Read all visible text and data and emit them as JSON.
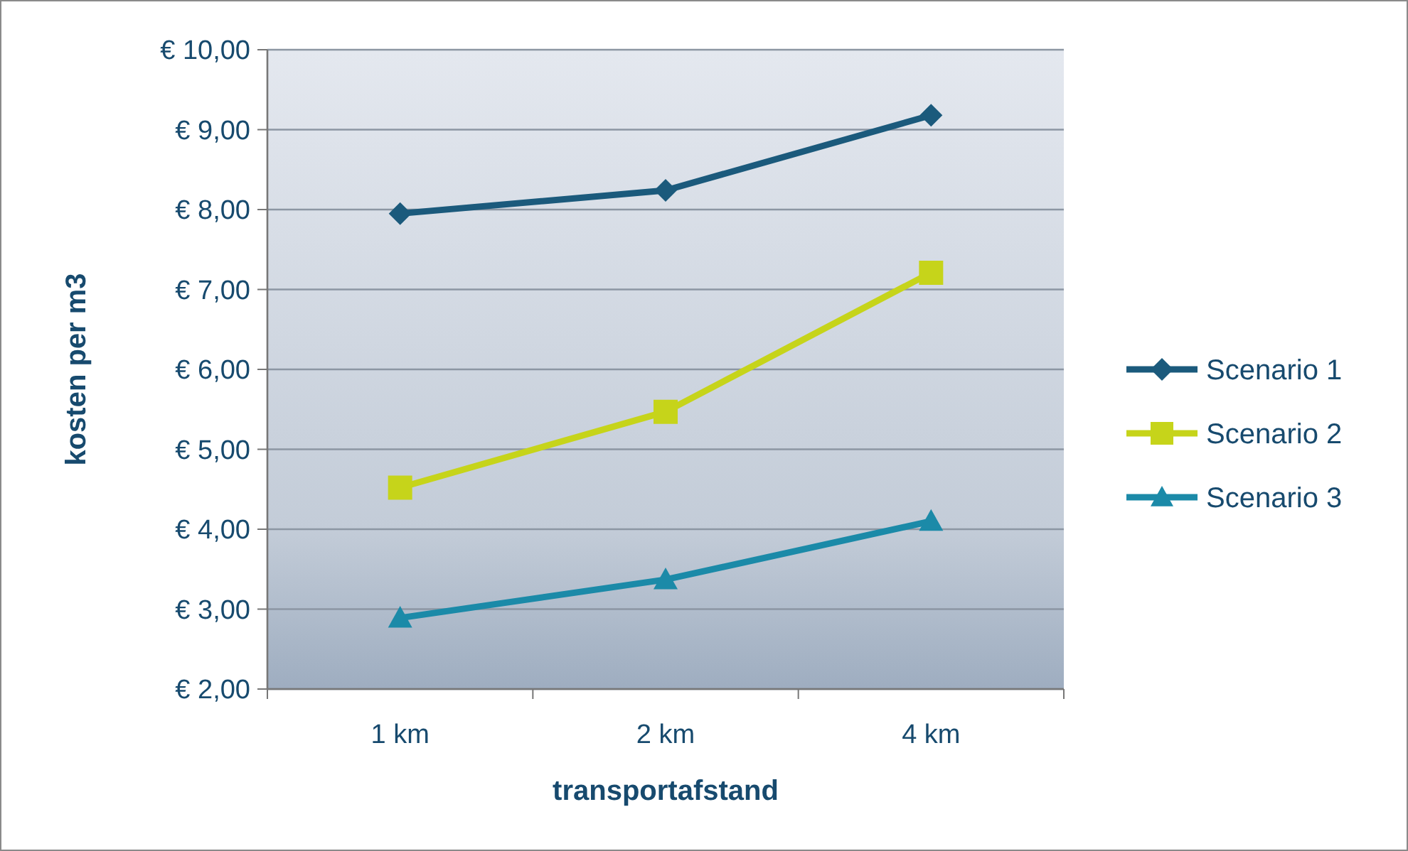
{
  "chart_data": {
    "type": "line",
    "xlabel": "transportafstand",
    "ylabel": "kosten per m3",
    "categories": [
      "1 km",
      "2 km",
      "4 km"
    ],
    "series": [
      {
        "name": "Scenario 1",
        "color": "#1b5a7c",
        "values": [
          7.95,
          8.24,
          9.18
        ],
        "marker": "diamond"
      },
      {
        "name": "Scenario 2",
        "color": "#c6d41a",
        "values": [
          4.52,
          5.47,
          7.21
        ],
        "marker": "square"
      },
      {
        "name": "Scenario 3",
        "color": "#1b8aa8",
        "values": [
          2.89,
          3.37,
          4.1
        ],
        "marker": "triangle"
      }
    ],
    "ylim": [
      2,
      10
    ],
    "yticks": [
      {
        "value": 2,
        "label": "€ 2,00"
      },
      {
        "value": 3,
        "label": "€ 3,00"
      },
      {
        "value": 4,
        "label": "€ 4,00"
      },
      {
        "value": 5,
        "label": "€ 5,00"
      },
      {
        "value": 6,
        "label": "€ 6,00"
      },
      {
        "value": 7,
        "label": "€ 7,00"
      },
      {
        "value": 8,
        "label": "€ 8,00"
      },
      {
        "value": 9,
        "label": "€ 9,00"
      },
      {
        "value": 10,
        "label": "€ 10,00"
      }
    ],
    "grid": "y",
    "legend": "right",
    "line_style": "solid"
  }
}
